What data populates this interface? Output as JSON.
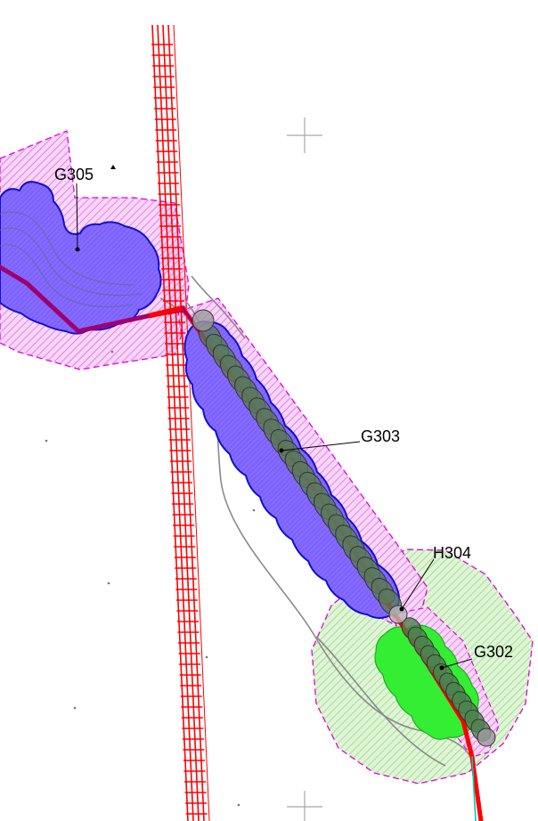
{
  "map": {
    "zones": [
      {
        "id": "G305",
        "label": "G305"
      },
      {
        "id": "G303",
        "label": "G303"
      },
      {
        "id": "H304",
        "label": "H304"
      },
      {
        "id": "G302",
        "label": "G302"
      }
    ],
    "colors": {
      "buffer_magenta": "#e000e0",
      "buffer_green": "#22bb22",
      "zone_blue": "#6a50ff",
      "zone_outline": "#0000cc",
      "segment_gray": "#4e7a4e",
      "route_red": "#ff0000",
      "route_purple": "#a0006e",
      "rail_red": "#ff0000",
      "road_gray": "#808080",
      "crosshair": "#a0a0a0"
    },
    "icons": [
      "crosshair-icon",
      "point-marker-icon",
      "triangle-marker-icon"
    ]
  }
}
